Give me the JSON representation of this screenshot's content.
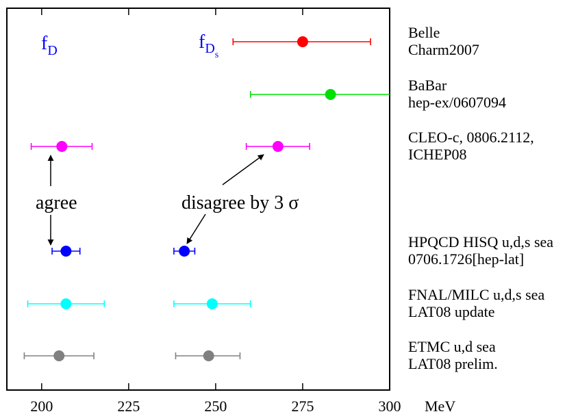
{
  "chart_data": {
    "type": "scatter",
    "subtype": "horizontal-errorbar",
    "x_unit": "MeV",
    "xlim": [
      190,
      300
    ],
    "x_ticks": [
      "200",
      "225",
      "250",
      "275",
      "300"
    ],
    "grid": false,
    "panel_labels": {
      "fD": {
        "main": "f",
        "sub": "D",
        "color": "#0000ff"
      },
      "fDs": {
        "main": "f",
        "sub": "D",
        "subsub": "s",
        "color": "#0000ff"
      }
    },
    "series": [
      {
        "label_line1": "Belle",
        "label_line2": "Charm2007",
        "color": "#ff0000",
        "points": [
          {
            "quantity": "fDs",
            "value": 275,
            "err_low": 255,
            "err_high": 294.5
          }
        ]
      },
      {
        "label_line1": "BaBar",
        "label_line2": "hep-ex/0607094",
        "color": "#00e000",
        "points": [
          {
            "quantity": "fDs",
            "value": 283,
            "err_low": 260,
            "err_high": 300
          }
        ]
      },
      {
        "label_line1": "CLEO-c, 0806.2112,",
        "label_line2": "ICHEP08",
        "color": "#ff00ff",
        "points": [
          {
            "quantity": "fD",
            "value": 205.8,
            "err_low": 197,
            "err_high": 214.5
          },
          {
            "quantity": "fDs",
            "value": 267.9,
            "err_low": 258.8,
            "err_high": 277
          }
        ]
      },
      {
        "label_line1": "HPQCD HISQ u,d,s sea",
        "label_line2": "0706.1726[hep-lat]",
        "color": "#0000ff",
        "points": [
          {
            "quantity": "fD",
            "value": 207,
            "err_low": 203,
            "err_high": 211
          },
          {
            "quantity": "fDs",
            "value": 241,
            "err_low": 238,
            "err_high": 244
          }
        ]
      },
      {
        "label_line1": "FNAL/MILC u,d,s sea",
        "label_line2": "LAT08 update",
        "color": "#00ffff",
        "points": [
          {
            "quantity": "fD",
            "value": 207,
            "err_low": 196,
            "err_high": 218
          },
          {
            "quantity": "fDs",
            "value": 249,
            "err_low": 238,
            "err_high": 260
          }
        ]
      },
      {
        "label_line1": "ETMC u,d sea",
        "label_line2": "LAT08 prelim.",
        "color": "#808080",
        "points": [
          {
            "quantity": "fD",
            "value": 205,
            "err_low": 195,
            "err_high": 215
          },
          {
            "quantity": "fDs",
            "value": 248,
            "err_low": 238.5,
            "err_high": 257
          }
        ]
      }
    ],
    "annotations": {
      "agree": "agree",
      "disagree": "disagree by 3 σ"
    }
  }
}
